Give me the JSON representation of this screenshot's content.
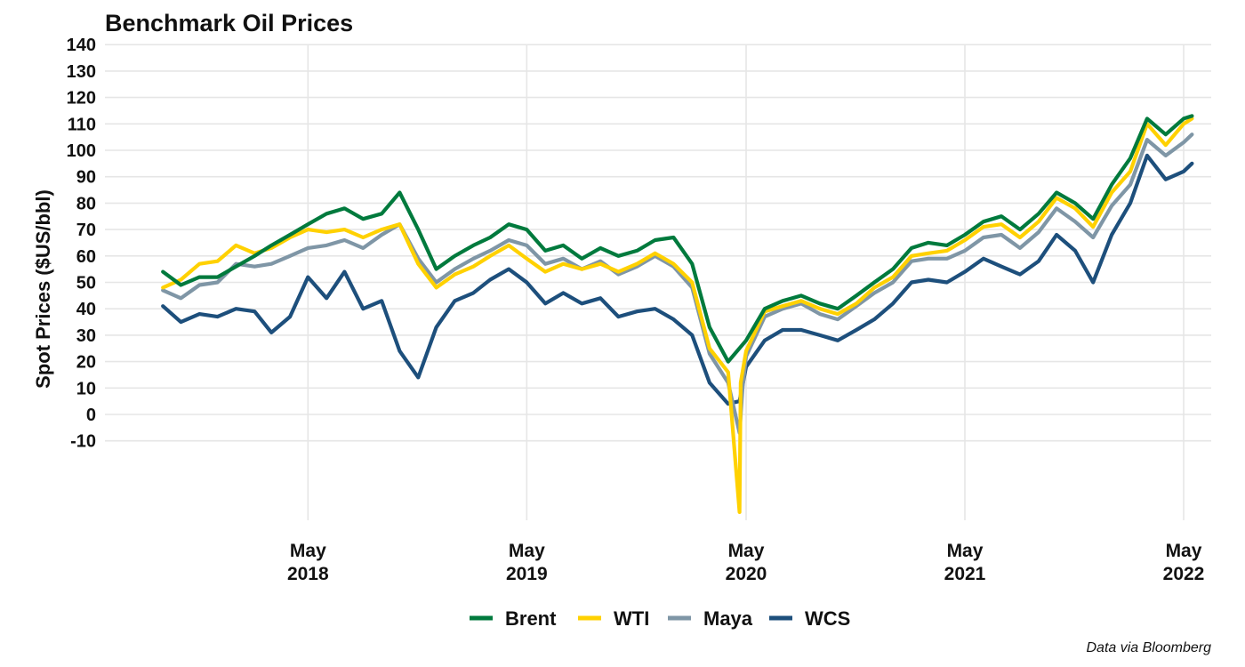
{
  "chart_data": {
    "type": "line",
    "title": "Benchmark Oil Prices",
    "ylabel": "Spot Prices ($US/bbl)",
    "xlabel": "",
    "caption": "Data via Bloomberg",
    "ylim": [
      -10,
      140
    ],
    "yticks": [
      -10,
      0,
      10,
      20,
      30,
      40,
      50,
      60,
      70,
      80,
      90,
      100,
      110,
      120,
      130,
      140
    ],
    "x_range": [
      "2017-09-01",
      "2022-06-01"
    ],
    "x_tick_labels": [
      {
        "date": "2018-05-01",
        "line1": "May",
        "line2": "2018"
      },
      {
        "date": "2019-05-01",
        "line1": "May",
        "line2": "2019"
      },
      {
        "date": "2020-05-01",
        "line1": "May",
        "line2": "2020"
      },
      {
        "date": "2021-05-01",
        "line1": "May",
        "line2": "2021"
      },
      {
        "date": "2022-05-01",
        "line1": "May",
        "line2": "2022"
      }
    ],
    "grid": true,
    "legend_position": "bottom",
    "series": [
      {
        "name": "Brent",
        "color": "#007a3d",
        "points": [
          [
            "2017-09-01",
            54
          ],
          [
            "2017-10-01",
            49
          ],
          [
            "2017-11-01",
            52
          ],
          [
            "2017-12-01",
            52
          ],
          [
            "2018-01-01",
            56
          ],
          [
            "2018-02-01",
            60
          ],
          [
            "2018-03-01",
            64
          ],
          [
            "2018-04-01",
            68
          ],
          [
            "2018-05-01",
            72
          ],
          [
            "2018-06-01",
            76
          ],
          [
            "2018-07-01",
            78
          ],
          [
            "2018-08-01",
            74
          ],
          [
            "2018-09-01",
            76
          ],
          [
            "2018-10-01",
            84
          ],
          [
            "2018-11-01",
            70
          ],
          [
            "2018-12-01",
            55
          ],
          [
            "2019-01-01",
            60
          ],
          [
            "2019-02-01",
            64
          ],
          [
            "2019-03-01",
            67
          ],
          [
            "2019-04-01",
            72
          ],
          [
            "2019-05-01",
            70
          ],
          [
            "2019-06-01",
            62
          ],
          [
            "2019-07-01",
            64
          ],
          [
            "2019-08-01",
            59
          ],
          [
            "2019-09-01",
            63
          ],
          [
            "2019-10-01",
            60
          ],
          [
            "2019-11-01",
            62
          ],
          [
            "2019-12-01",
            66
          ],
          [
            "2020-01-01",
            67
          ],
          [
            "2020-02-01",
            57
          ],
          [
            "2020-03-01",
            33
          ],
          [
            "2020-04-01",
            20
          ],
          [
            "2020-05-01",
            28
          ],
          [
            "2020-06-01",
            40
          ],
          [
            "2020-07-01",
            43
          ],
          [
            "2020-08-01",
            45
          ],
          [
            "2020-09-01",
            42
          ],
          [
            "2020-10-01",
            40
          ],
          [
            "2020-11-01",
            45
          ],
          [
            "2020-12-01",
            50
          ],
          [
            "2021-01-01",
            55
          ],
          [
            "2021-02-01",
            63
          ],
          [
            "2021-03-01",
            65
          ],
          [
            "2021-04-01",
            64
          ],
          [
            "2021-05-01",
            68
          ],
          [
            "2021-06-01",
            73
          ],
          [
            "2021-07-01",
            75
          ],
          [
            "2021-08-01",
            70
          ],
          [
            "2021-09-01",
            76
          ],
          [
            "2021-10-01",
            84
          ],
          [
            "2021-11-01",
            80
          ],
          [
            "2021-12-01",
            74
          ],
          [
            "2022-01-01",
            87
          ],
          [
            "2022-02-01",
            97
          ],
          [
            "2022-03-01",
            112
          ],
          [
            "2022-04-01",
            106
          ],
          [
            "2022-05-01",
            112
          ],
          [
            "2022-05-15",
            113
          ]
        ]
      },
      {
        "name": "WTI",
        "color": "#ffd100",
        "points": [
          [
            "2017-09-01",
            48
          ],
          [
            "2017-10-01",
            51
          ],
          [
            "2017-11-01",
            57
          ],
          [
            "2017-12-01",
            58
          ],
          [
            "2018-01-01",
            64
          ],
          [
            "2018-02-01",
            61
          ],
          [
            "2018-03-01",
            63
          ],
          [
            "2018-04-01",
            67
          ],
          [
            "2018-05-01",
            70
          ],
          [
            "2018-06-01",
            69
          ],
          [
            "2018-07-01",
            70
          ],
          [
            "2018-08-01",
            67
          ],
          [
            "2018-09-01",
            70
          ],
          [
            "2018-10-01",
            72
          ],
          [
            "2018-11-01",
            57
          ],
          [
            "2018-12-01",
            48
          ],
          [
            "2019-01-01",
            53
          ],
          [
            "2019-02-01",
            56
          ],
          [
            "2019-03-01",
            60
          ],
          [
            "2019-04-01",
            64
          ],
          [
            "2019-05-01",
            59
          ],
          [
            "2019-06-01",
            54
          ],
          [
            "2019-07-01",
            57
          ],
          [
            "2019-08-01",
            55
          ],
          [
            "2019-09-01",
            57
          ],
          [
            "2019-10-01",
            54
          ],
          [
            "2019-11-01",
            57
          ],
          [
            "2019-12-01",
            61
          ],
          [
            "2020-01-01",
            57
          ],
          [
            "2020-02-01",
            50
          ],
          [
            "2020-03-01",
            25
          ],
          [
            "2020-04-01",
            16
          ],
          [
            "2020-04-20",
            -37
          ],
          [
            "2020-04-22",
            12
          ],
          [
            "2020-05-01",
            24
          ],
          [
            "2020-06-01",
            39
          ],
          [
            "2020-07-01",
            41
          ],
          [
            "2020-08-01",
            43
          ],
          [
            "2020-09-01",
            40
          ],
          [
            "2020-10-01",
            38
          ],
          [
            "2020-11-01",
            42
          ],
          [
            "2020-12-01",
            48
          ],
          [
            "2021-01-01",
            52
          ],
          [
            "2021-02-01",
            60
          ],
          [
            "2021-03-01",
            61
          ],
          [
            "2021-04-01",
            62
          ],
          [
            "2021-05-01",
            66
          ],
          [
            "2021-06-01",
            71
          ],
          [
            "2021-07-01",
            72
          ],
          [
            "2021-08-01",
            67
          ],
          [
            "2021-09-01",
            73
          ],
          [
            "2021-10-01",
            82
          ],
          [
            "2021-11-01",
            78
          ],
          [
            "2021-12-01",
            71
          ],
          [
            "2022-01-01",
            84
          ],
          [
            "2022-02-01",
            92
          ],
          [
            "2022-03-01",
            110
          ],
          [
            "2022-04-01",
            102
          ],
          [
            "2022-05-01",
            110
          ],
          [
            "2022-05-15",
            112
          ]
        ]
      },
      {
        "name": "Maya",
        "color": "#7f96a6",
        "points": [
          [
            "2017-09-01",
            47
          ],
          [
            "2017-10-01",
            44
          ],
          [
            "2017-11-01",
            49
          ],
          [
            "2017-12-01",
            50
          ],
          [
            "2018-01-01",
            57
          ],
          [
            "2018-02-01",
            56
          ],
          [
            "2018-03-01",
            57
          ],
          [
            "2018-04-01",
            60
          ],
          [
            "2018-05-01",
            63
          ],
          [
            "2018-06-01",
            64
          ],
          [
            "2018-07-01",
            66
          ],
          [
            "2018-08-01",
            63
          ],
          [
            "2018-09-01",
            68
          ],
          [
            "2018-10-01",
            72
          ],
          [
            "2018-11-01",
            59
          ],
          [
            "2018-12-01",
            50
          ],
          [
            "2019-01-01",
            55
          ],
          [
            "2019-02-01",
            59
          ],
          [
            "2019-03-01",
            62
          ],
          [
            "2019-04-01",
            66
          ],
          [
            "2019-05-01",
            64
          ],
          [
            "2019-06-01",
            57
          ],
          [
            "2019-07-01",
            59
          ],
          [
            "2019-08-01",
            55
          ],
          [
            "2019-09-01",
            58
          ],
          [
            "2019-10-01",
            53
          ],
          [
            "2019-11-01",
            56
          ],
          [
            "2019-12-01",
            60
          ],
          [
            "2020-01-01",
            56
          ],
          [
            "2020-02-01",
            48
          ],
          [
            "2020-03-01",
            23
          ],
          [
            "2020-04-01",
            12
          ],
          [
            "2020-04-20",
            -7
          ],
          [
            "2020-04-25",
            10
          ],
          [
            "2020-05-01",
            22
          ],
          [
            "2020-06-01",
            37
          ],
          [
            "2020-07-01",
            40
          ],
          [
            "2020-08-01",
            42
          ],
          [
            "2020-09-01",
            38
          ],
          [
            "2020-10-01",
            36
          ],
          [
            "2020-11-01",
            41
          ],
          [
            "2020-12-01",
            46
          ],
          [
            "2021-01-01",
            50
          ],
          [
            "2021-02-01",
            58
          ],
          [
            "2021-03-01",
            59
          ],
          [
            "2021-04-01",
            59
          ],
          [
            "2021-05-01",
            62
          ],
          [
            "2021-06-01",
            67
          ],
          [
            "2021-07-01",
            68
          ],
          [
            "2021-08-01",
            63
          ],
          [
            "2021-09-01",
            69
          ],
          [
            "2021-10-01",
            78
          ],
          [
            "2021-11-01",
            73
          ],
          [
            "2021-12-01",
            67
          ],
          [
            "2022-01-01",
            79
          ],
          [
            "2022-02-01",
            87
          ],
          [
            "2022-03-01",
            104
          ],
          [
            "2022-04-01",
            98
          ],
          [
            "2022-05-01",
            103
          ],
          [
            "2022-05-15",
            106
          ]
        ]
      },
      {
        "name": "WCS",
        "color": "#1d4f7c",
        "points": [
          [
            "2017-09-01",
            41
          ],
          [
            "2017-10-01",
            35
          ],
          [
            "2017-11-01",
            38
          ],
          [
            "2017-12-01",
            37
          ],
          [
            "2018-01-01",
            40
          ],
          [
            "2018-02-01",
            39
          ],
          [
            "2018-03-01",
            31
          ],
          [
            "2018-04-01",
            37
          ],
          [
            "2018-05-01",
            52
          ],
          [
            "2018-06-01",
            44
          ],
          [
            "2018-07-01",
            54
          ],
          [
            "2018-08-01",
            40
          ],
          [
            "2018-09-01",
            43
          ],
          [
            "2018-10-01",
            24
          ],
          [
            "2018-11-01",
            14
          ],
          [
            "2018-12-01",
            33
          ],
          [
            "2019-01-01",
            43
          ],
          [
            "2019-02-01",
            46
          ],
          [
            "2019-03-01",
            51
          ],
          [
            "2019-04-01",
            55
          ],
          [
            "2019-05-01",
            50
          ],
          [
            "2019-06-01",
            42
          ],
          [
            "2019-07-01",
            46
          ],
          [
            "2019-08-01",
            42
          ],
          [
            "2019-09-01",
            44
          ],
          [
            "2019-10-01",
            37
          ],
          [
            "2019-11-01",
            39
          ],
          [
            "2019-12-01",
            40
          ],
          [
            "2020-01-01",
            36
          ],
          [
            "2020-02-01",
            30
          ],
          [
            "2020-03-01",
            12
          ],
          [
            "2020-04-01",
            4
          ],
          [
            "2020-04-20",
            5
          ],
          [
            "2020-05-01",
            18
          ],
          [
            "2020-06-01",
            28
          ],
          [
            "2020-07-01",
            32
          ],
          [
            "2020-08-01",
            32
          ],
          [
            "2020-09-01",
            30
          ],
          [
            "2020-10-01",
            28
          ],
          [
            "2020-11-01",
            32
          ],
          [
            "2020-12-01",
            36
          ],
          [
            "2021-01-01",
            42
          ],
          [
            "2021-02-01",
            50
          ],
          [
            "2021-03-01",
            51
          ],
          [
            "2021-04-01",
            50
          ],
          [
            "2021-05-01",
            54
          ],
          [
            "2021-06-01",
            59
          ],
          [
            "2021-07-01",
            56
          ],
          [
            "2021-08-01",
            53
          ],
          [
            "2021-09-01",
            58
          ],
          [
            "2021-10-01",
            68
          ],
          [
            "2021-11-01",
            62
          ],
          [
            "2021-12-01",
            50
          ],
          [
            "2022-01-01",
            68
          ],
          [
            "2022-02-01",
            80
          ],
          [
            "2022-03-01",
            98
          ],
          [
            "2022-04-01",
            89
          ],
          [
            "2022-05-01",
            92
          ],
          [
            "2022-05-15",
            95
          ]
        ]
      }
    ]
  }
}
